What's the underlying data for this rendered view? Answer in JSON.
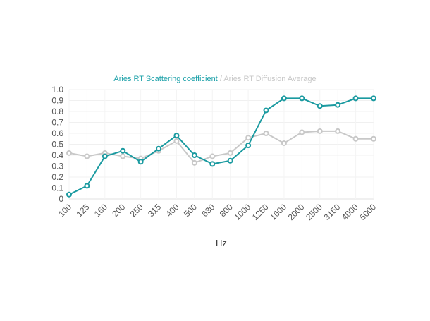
{
  "chart_data": {
    "type": "line",
    "xlabel": "Hz",
    "ylabel": "",
    "ylim": [
      0,
      1.0
    ],
    "yticks": [
      "0",
      "0.1",
      "0.2",
      "0.3",
      "0.4",
      "0.5",
      "0.6",
      "0.7",
      "0.8",
      "0.9",
      "1.0"
    ],
    "categories": [
      "100",
      "125",
      "160",
      "200",
      "250",
      "315",
      "400",
      "500",
      "630",
      "800",
      "1000",
      "1250",
      "1600",
      "2000",
      "2500",
      "3150",
      "4000",
      "5000"
    ],
    "legend_position": "top",
    "legend_separator": "/",
    "grid": true,
    "series": [
      {
        "name": "Aries RT Scattering coefficient",
        "color": "#1a9aa0",
        "values": [
          0.04,
          0.12,
          0.39,
          0.44,
          0.34,
          0.46,
          0.58,
          0.4,
          0.32,
          0.35,
          0.49,
          0.81,
          0.92,
          0.92,
          0.85,
          0.86,
          0.92,
          0.92
        ]
      },
      {
        "name": "Aries RT Diffusion Average",
        "color": "#c8c8c8",
        "values": [
          0.42,
          0.39,
          0.42,
          0.39,
          0.37,
          0.44,
          0.53,
          0.33,
          0.39,
          0.42,
          0.56,
          0.6,
          0.51,
          0.61,
          0.62,
          0.62,
          0.55,
          0.55
        ]
      }
    ]
  }
}
